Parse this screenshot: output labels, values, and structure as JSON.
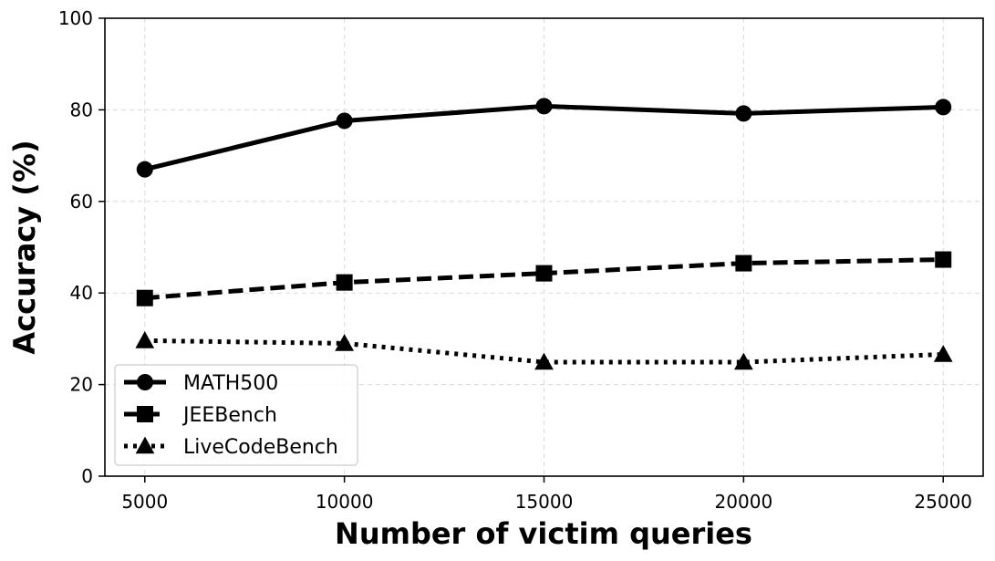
{
  "chart_data": {
    "type": "line",
    "xlabel": "Number of victim queries",
    "ylabel": "Accuracy (%)",
    "x": [
      5000,
      10000,
      15000,
      20000,
      25000
    ],
    "x_ticks": [
      5000,
      10000,
      15000,
      20000,
      25000
    ],
    "y_ticks": [
      0,
      20,
      40,
      60,
      80,
      100
    ],
    "xlim": [
      4000,
      26000
    ],
    "ylim": [
      0,
      100
    ],
    "grid": true,
    "legend_position": "lower-left",
    "series": [
      {
        "name": "MATH500",
        "values": [
          67.0,
          77.6,
          80.8,
          79.2,
          80.6
        ],
        "marker": "circle",
        "dash": "solid",
        "color": "#000000"
      },
      {
        "name": "JEEBench",
        "values": [
          38.9,
          42.3,
          44.3,
          46.5,
          47.3
        ],
        "marker": "square",
        "dash": "dashed",
        "color": "#000000"
      },
      {
        "name": "LiveCodeBench",
        "values": [
          29.6,
          29.0,
          24.9,
          24.9,
          26.6
        ],
        "marker": "triangle",
        "dash": "dotted",
        "color": "#000000"
      }
    ]
  }
}
